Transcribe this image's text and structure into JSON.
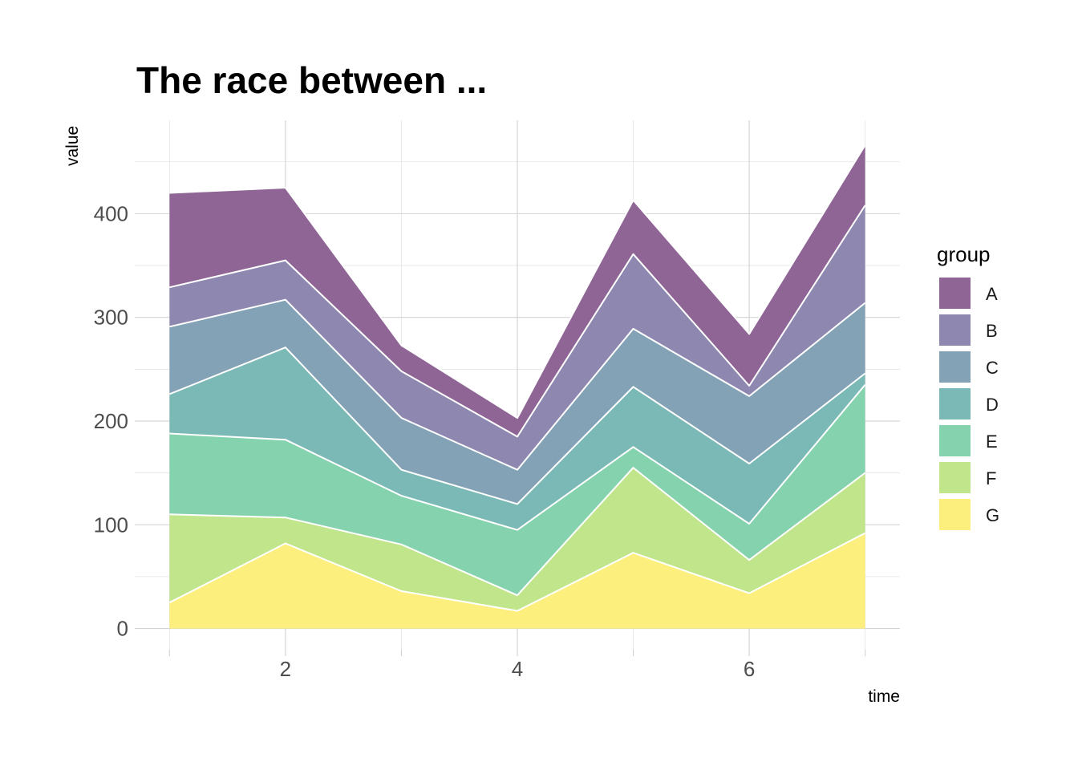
{
  "chart_data": {
    "type": "area",
    "stacked": true,
    "title": "The race between ...",
    "xlabel": "time",
    "ylabel": "value",
    "x": [
      1,
      2,
      3,
      4,
      5,
      6,
      7
    ],
    "xlim": [
      0.7,
      7.3
    ],
    "ylim": [
      -22,
      490
    ],
    "x_ticks": [
      2,
      4,
      6
    ],
    "y_ticks": [
      0,
      100,
      200,
      300,
      400
    ],
    "grid": true,
    "legend": {
      "title": "group",
      "position": "right"
    },
    "series": [
      {
        "name": "A",
        "color": "#8F6596",
        "values": [
          91,
          70,
          25,
          18,
          52,
          50,
          58
        ]
      },
      {
        "name": "B",
        "color": "#8E88B1",
        "values": [
          38,
          38,
          45,
          32,
          72,
          10,
          94
        ]
      },
      {
        "name": "C",
        "color": "#83A2B6",
        "values": [
          65,
          46,
          50,
          33,
          56,
          65,
          68
        ]
      },
      {
        "name": "D",
        "color": "#7BB9B6",
        "values": [
          38,
          89,
          25,
          25,
          58,
          58,
          11
        ]
      },
      {
        "name": "E",
        "color": "#85D2AE",
        "values": [
          78,
          75,
          47,
          63,
          20,
          35,
          85
        ]
      },
      {
        "name": "F",
        "color": "#C0E58B",
        "values": [
          85,
          25,
          45,
          15,
          82,
          32,
          58
        ]
      },
      {
        "name": "G",
        "color": "#FDEF7D",
        "values": [
          25,
          82,
          36,
          17,
          73,
          34,
          92
        ]
      }
    ]
  }
}
